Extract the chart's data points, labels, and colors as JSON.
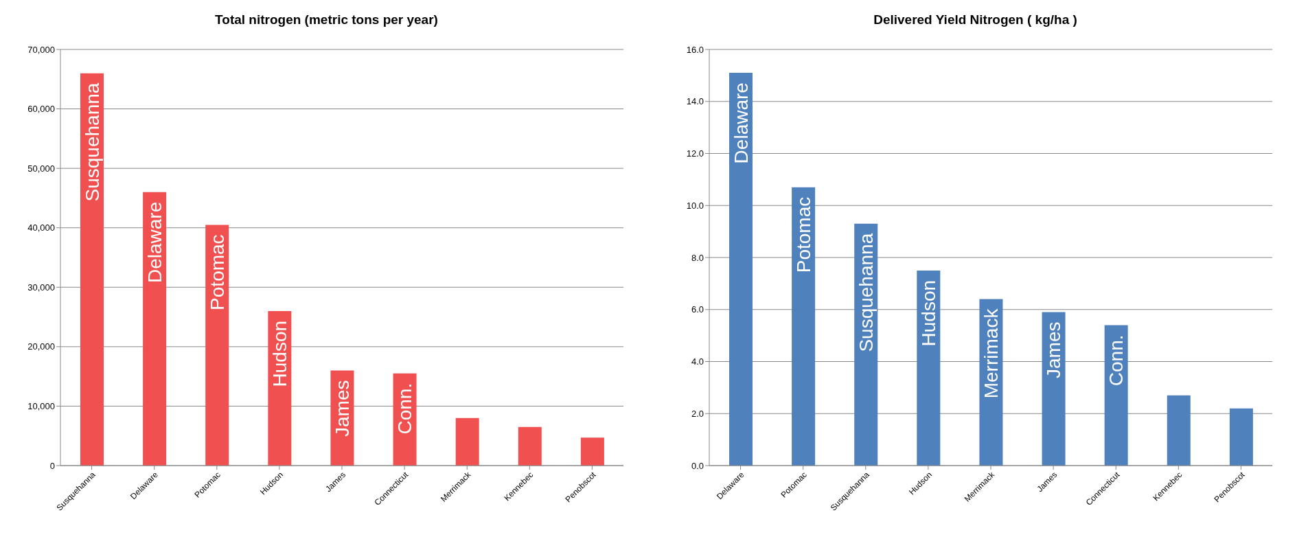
{
  "chart_data": [
    {
      "type": "bar",
      "title": "Total nitrogen (metric tons per year)",
      "categories": [
        "Susquehanna",
        "Delaware",
        "Potomac",
        "Hudson",
        "James",
        "Connecticut",
        "Merrimack",
        "Kennebec",
        "Penobscot"
      ],
      "values": [
        66000,
        46000,
        40500,
        26000,
        16000,
        15500,
        8000,
        6500,
        4700
      ],
      "color": "#f05050",
      "ylim": [
        0,
        70000
      ],
      "yticks": [
        {
          "value": 0,
          "label": "0"
        },
        {
          "value": 10000,
          "label": "10,000"
        },
        {
          "value": 20000,
          "label": "20,000"
        },
        {
          "value": 30000,
          "label": "30,000"
        },
        {
          "value": 40000,
          "label": "40,000"
        },
        {
          "value": 50000,
          "label": "50,000"
        },
        {
          "value": 60000,
          "label": "60,000"
        },
        {
          "value": 70000,
          "label": "70,000"
        }
      ],
      "grid": "y",
      "annotations": [
        {
          "text": "Susquehanna",
          "x": "Susquehanna",
          "y": 66000
        },
        {
          "text": "Delaware",
          "x": "Delaware",
          "y": 46000
        },
        {
          "text": "Potomac",
          "x": "Potomac",
          "y": 40500
        },
        {
          "text": "Hudson",
          "x": "Hudson",
          "y": 26000
        },
        {
          "text": "James",
          "x": "James",
          "y": 16000
        },
        {
          "text": "Conn.",
          "x": "Connecticut",
          "y": 15500
        }
      ]
    },
    {
      "type": "bar",
      "title": "Delivered Yield Nitrogen ( kg/ha )",
      "categories": [
        "Delaware",
        "Potomac",
        "Susquehanna",
        "Hudson",
        "Merrimack",
        "James",
        "Connecticut",
        "Kennebec",
        "Penobscot"
      ],
      "values": [
        15.1,
        10.7,
        9.3,
        7.5,
        6.4,
        5.9,
        5.4,
        2.7,
        2.2
      ],
      "color": "#4f81bd",
      "ylim": [
        0,
        16
      ],
      "yticks": [
        {
          "value": 0,
          "label": "0.0"
        },
        {
          "value": 2,
          "label": "2.0"
        },
        {
          "value": 4,
          "label": "4.0"
        },
        {
          "value": 6,
          "label": "6.0"
        },
        {
          "value": 8,
          "label": "8.0"
        },
        {
          "value": 10,
          "label": "10.0"
        },
        {
          "value": 12,
          "label": "12.0"
        },
        {
          "value": 14,
          "label": "14.0"
        },
        {
          "value": 16,
          "label": "16.0"
        }
      ],
      "grid": "y",
      "annotations": [
        {
          "text": "Delaware",
          "x": "Delaware",
          "y": 15.1
        },
        {
          "text": "Potomac",
          "x": "Potomac",
          "y": 10.7
        },
        {
          "text": "Susquehanna",
          "x": "Susquehanna",
          "y": 9.3
        },
        {
          "text": "Hudson",
          "x": "Hudson",
          "y": 7.5
        },
        {
          "text": "Merrimack",
          "x": "Merrimack",
          "y": 6.4
        },
        {
          "text": "James",
          "x": "James",
          "y": 5.9
        },
        {
          "text": "Conn.",
          "x": "Connecticut",
          "y": 5.4
        }
      ]
    }
  ]
}
